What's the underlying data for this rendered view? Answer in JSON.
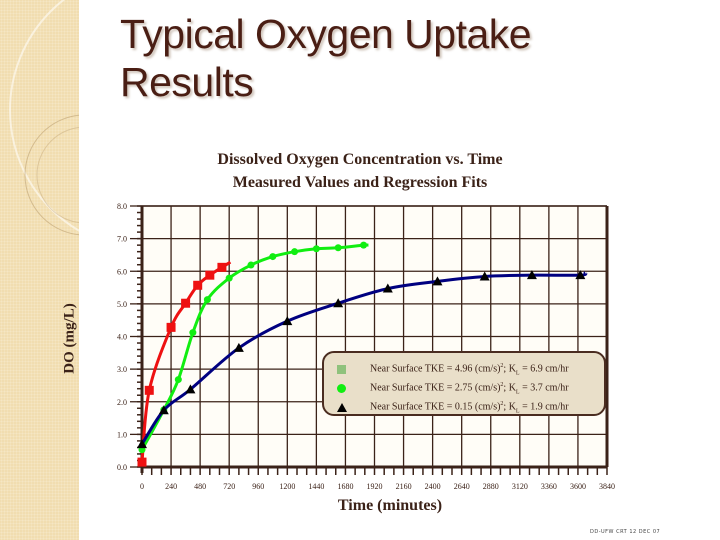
{
  "slide": {
    "title_line1": "Typical Oxygen Uptake",
    "title_line2": "Results",
    "footer": "DD-UFW CRT 12 DEC 07"
  },
  "colors": {
    "sidebar": "#f1ddb0",
    "title": "#4a1e14",
    "axis": "#3b2218",
    "plot_bg": "#fffdf7",
    "legend_bg": "#e9dfc9",
    "series_high": "#ee1111",
    "series_mid": "#11ee11",
    "series_low": "#000000",
    "fit_low": "#000080"
  },
  "chart_data": {
    "type": "scatter",
    "title": "Dissolved Oxygen Concentration vs. Time",
    "subtitle": "Measured Values and Regression Fits",
    "xlabel": "Time (minutes)",
    "ylabel": "DO (mg/L)",
    "xlim": [
      0,
      3840
    ],
    "ylim": [
      0,
      8
    ],
    "grid": true,
    "x_ticks": [
      0,
      240,
      480,
      720,
      960,
      1200,
      1440,
      1680,
      1920,
      2160,
      2400,
      2640,
      2880,
      3120,
      3360,
      3600,
      3840
    ],
    "y_ticks": [
      "0.0",
      "1.0",
      "2.0",
      "3.0",
      "4.0",
      "5.0",
      "6.0",
      "7.0",
      "8.0"
    ],
    "legend_position": "center-right",
    "series": [
      {
        "name": "Near Surface TKE = 4.96 (cm/s)²; KL = 6.9 cm/hr",
        "label_prefix": "Near Surface TKE = 4.96 (cm/s)",
        "label_suffix": "; K",
        "label_sub": "L",
        "label_end": " = 6.9 cm/hr",
        "marker": "square",
        "color": "#ee1111",
        "x": [
          0,
          60,
          240,
          360,
          460,
          560,
          660
        ],
        "y": [
          0.15,
          2.35,
          4.28,
          5.02,
          5.57,
          5.88,
          6.12
        ],
        "fit_end_x": 730,
        "fit_end_y": 6.28
      },
      {
        "name": "Near Surface TKE = 2.75 (cm/s)²; KL = 3.7 cm/hr",
        "label_prefix": "Near Surface TKE = 2.75 (cm/s)",
        "label_suffix": "; K",
        "label_sub": "L",
        "label_end": " = 3.7 cm/hr",
        "marker": "circle",
        "color": "#11ee11",
        "x": [
          0,
          180,
          300,
          420,
          540,
          720,
          900,
          1080,
          1260,
          1440,
          1620,
          1830
        ],
        "y": [
          0.53,
          1.75,
          2.68,
          4.12,
          5.13,
          5.79,
          6.19,
          6.45,
          6.6,
          6.69,
          6.72,
          6.8
        ],
        "fit_end_x": 1870,
        "fit_end_y": 6.8
      },
      {
        "name": "Near Surface TKE = 0.15 (cm/s)²; KL = 1.9 cm/hr",
        "label_prefix": "Near Surface TKE = 0.15 (cm/s)",
        "label_suffix": "; K",
        "label_sub": "L",
        "label_end": " = 1.9 cm/hr",
        "marker": "triangle",
        "color": "#000000",
        "x": [
          0,
          180,
          400,
          800,
          1200,
          1620,
          2030,
          2440,
          2830,
          3220,
          3620
        ],
        "y": [
          0.7,
          1.74,
          2.38,
          3.65,
          4.47,
          5.02,
          5.47,
          5.69,
          5.84,
          5.88,
          5.88
        ],
        "fit_end_x": 3660,
        "fit_end_y": 5.96
      }
    ]
  }
}
